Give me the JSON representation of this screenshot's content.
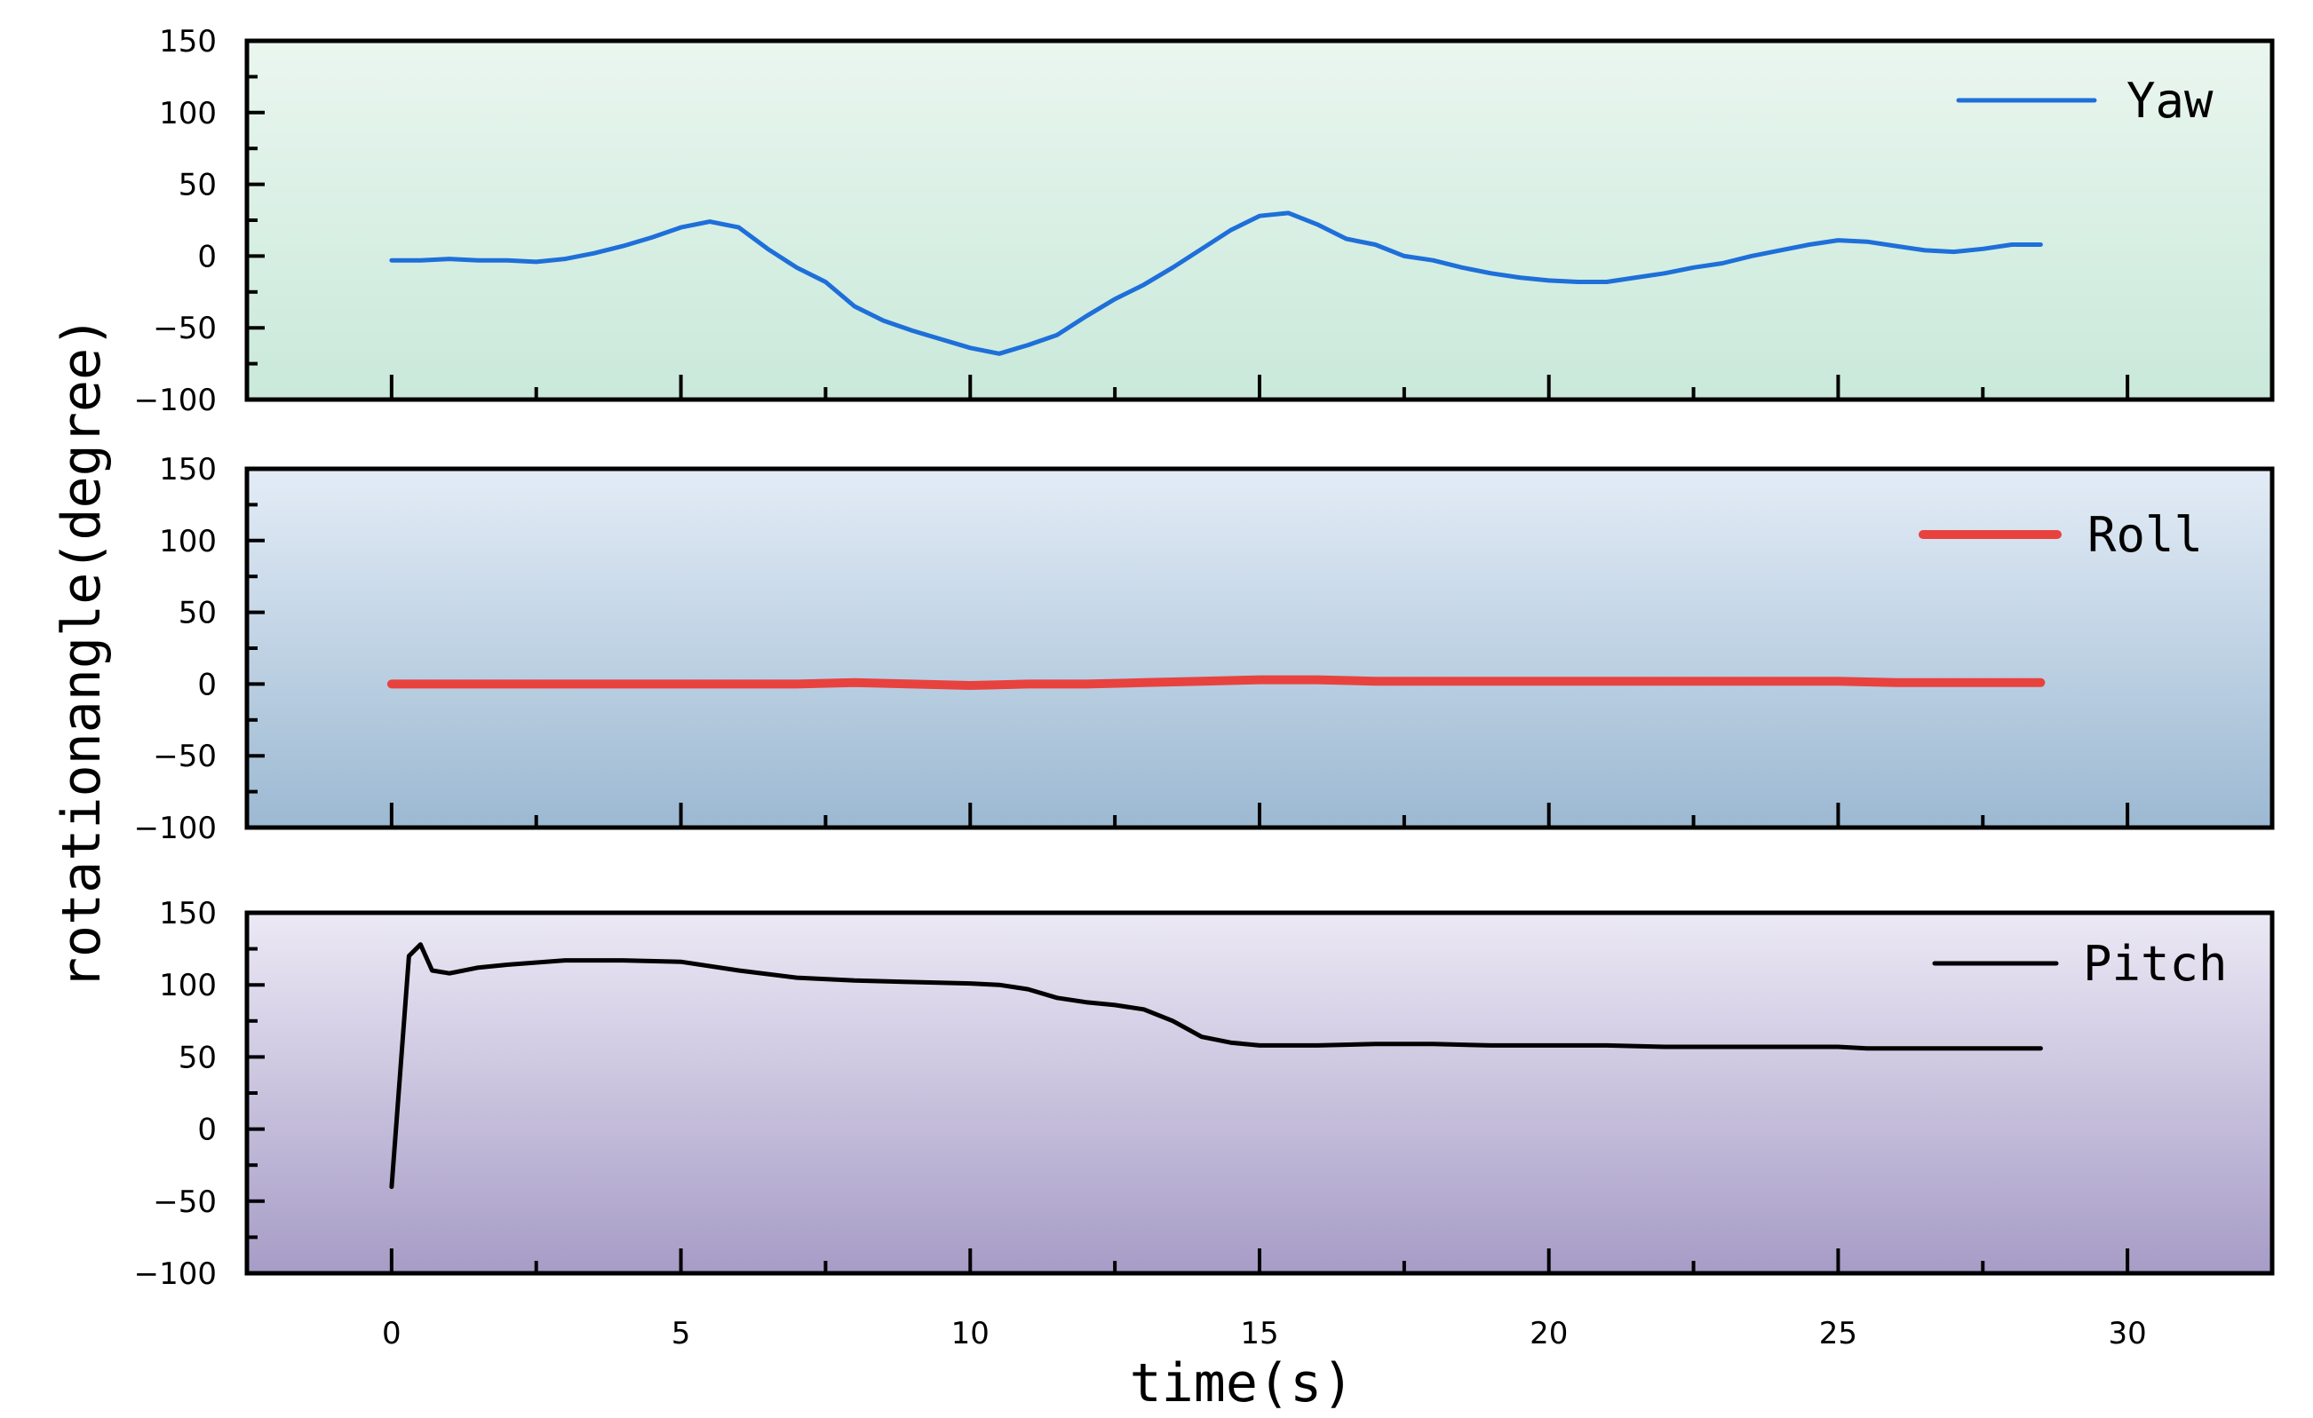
{
  "chart_data": {
    "type": "line",
    "ylabel": "rotationangle(degree)",
    "xlabel": "time(s)",
    "xlim": [
      -2.5,
      32.5
    ],
    "xticks": [
      0,
      5,
      10,
      15,
      20,
      25,
      30
    ],
    "xtick_labels": [
      "0",
      "5",
      "10",
      "15",
      "20",
      "25",
      "30"
    ],
    "grid": false,
    "legend_position": "top-right",
    "panels": [
      {
        "name": "Yaw",
        "color": "#1e6fd9",
        "ylim": [
          -100,
          150
        ],
        "yticks": [
          150,
          100,
          50,
          0,
          -50,
          -100
        ],
        "ytick_labels": [
          "150",
          "100",
          "50",
          "0",
          "−50",
          "−100"
        ],
        "background": [
          "#eaf6ef",
          "#c9e9da"
        ],
        "x": [
          0,
          0.5,
          1,
          1.5,
          2,
          2.5,
          3,
          3.5,
          4,
          4.5,
          5,
          5.5,
          6,
          6.5,
          7,
          7.5,
          8,
          8.5,
          9,
          9.5,
          10,
          10.5,
          11,
          11.5,
          12,
          12.5,
          13,
          13.5,
          14,
          14.5,
          15,
          15.5,
          16,
          16.5,
          17,
          17.5,
          18,
          18.5,
          19,
          19.5,
          20,
          20.5,
          21,
          21.5,
          22,
          22.5,
          23,
          23.5,
          24,
          24.5,
          25,
          25.5,
          26,
          26.5,
          27,
          27.5,
          28,
          28.5
        ],
        "y": [
          -3,
          -3,
          -2,
          -3,
          -3,
          -4,
          -2,
          2,
          7,
          13,
          20,
          24,
          20,
          5,
          -8,
          -18,
          -35,
          -45,
          -52,
          -58,
          -64,
          -68,
          -62,
          -55,
          -42,
          -30,
          -20,
          -8,
          5,
          18,
          28,
          30,
          22,
          12,
          8,
          0,
          -3,
          -8,
          -12,
          -15,
          -17,
          -18,
          -18,
          -15,
          -12,
          -8,
          -5,
          0,
          4,
          8,
          11,
          10,
          7,
          4,
          3,
          5,
          8,
          8
        ]
      },
      {
        "name": "Roll",
        "color": "#e8423f",
        "ylim": [
          -100,
          150
        ],
        "yticks": [
          150,
          100,
          50,
          0,
          -50,
          -100
        ],
        "ytick_labels": [
          "150",
          "100",
          "50",
          "0",
          "−50",
          "−100"
        ],
        "background": [
          "#e3ecf6",
          "#9cb9d2"
        ],
        "x": [
          0,
          1,
          2,
          3,
          4,
          5,
          6,
          7,
          8,
          9,
          10,
          11,
          12,
          13,
          14,
          15,
          16,
          17,
          18,
          19,
          20,
          21,
          22,
          23,
          24,
          25,
          26,
          27,
          28,
          28.5
        ],
        "y": [
          0,
          0,
          0,
          0,
          0,
          0,
          0,
          0,
          1,
          0,
          -1,
          0,
          0,
          1,
          2,
          3,
          3,
          2,
          2,
          2,
          2,
          2,
          2,
          2,
          2,
          2,
          1,
          1,
          1,
          1
        ]
      },
      {
        "name": "Pitch",
        "color": "#000000",
        "ylim": [
          -100,
          150
        ],
        "yticks": [
          150,
          100,
          50,
          0,
          -50,
          -100
        ],
        "ytick_labels": [
          "150",
          "100",
          "50",
          "0",
          "−50",
          "−100"
        ],
        "background": [
          "#ece9f5",
          "#a69cc6"
        ],
        "x": [
          0,
          0.3,
          0.5,
          0.7,
          1,
          1.5,
          2,
          3,
          4,
          5,
          6,
          7,
          8,
          9,
          10,
          10.5,
          11,
          11.5,
          12,
          12.5,
          13,
          13.5,
          14,
          14.5,
          15,
          16,
          17,
          18,
          19,
          20,
          21,
          22,
          23,
          24,
          25,
          25.5,
          26,
          27,
          28,
          28.5
        ],
        "y": [
          -40,
          120,
          128,
          110,
          108,
          112,
          114,
          117,
          117,
          116,
          110,
          105,
          103,
          102,
          101,
          100,
          97,
          91,
          88,
          86,
          83,
          75,
          64,
          60,
          58,
          58,
          59,
          59,
          58,
          58,
          58,
          57,
          57,
          57,
          57,
          56,
          56,
          56,
          56,
          56
        ]
      }
    ]
  }
}
